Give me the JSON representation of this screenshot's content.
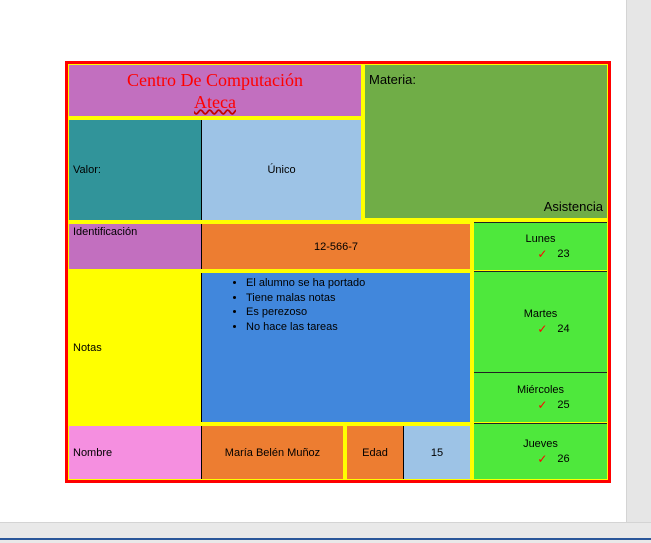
{
  "title": {
    "line1": "Centro De Computación",
    "line2": "Ateca"
  },
  "materia_label": "Materia:",
  "asistencia_label": "Asistencia",
  "valor": {
    "label": "Valor:",
    "value": "Único"
  },
  "identificacion": {
    "label": "Identificación",
    "value": "12-566-7"
  },
  "notas": {
    "label": "Notas",
    "items": [
      "El alumno se ha portado",
      "Tiene malas notas",
      "Es perezoso",
      "No hace las tareas"
    ]
  },
  "nombre": {
    "label": "Nombre",
    "value": "María Belén Muñoz"
  },
  "edad": {
    "label": "Edad",
    "value": "15"
  },
  "days": [
    {
      "name": "Lunes",
      "num": "23"
    },
    {
      "name": "Martes",
      "num": "24"
    },
    {
      "name": "Miércoles",
      "num": "25"
    },
    {
      "name": "Jueves",
      "num": "26"
    }
  ],
  "colors": {
    "title_bg": "#c26fbf",
    "materia_bg": "#70ad47",
    "valor_bg": "#31949a",
    "unico_bg": "#9dc3e6",
    "ident_bg": "#c26fbf",
    "ident_value_bg": "#ed7d31",
    "notas_bg": "#ffff00",
    "list_bg": "#4187dc",
    "nombre_bg": "#f58fe0",
    "nombre_value_bg": "#ed7d31",
    "edad_bg": "#ed7d31",
    "edad_value_bg": "#9dc3e6",
    "days_bg": "#4ee83c",
    "border_red": "#ff0000",
    "border_yellow": "#ffff00"
  }
}
